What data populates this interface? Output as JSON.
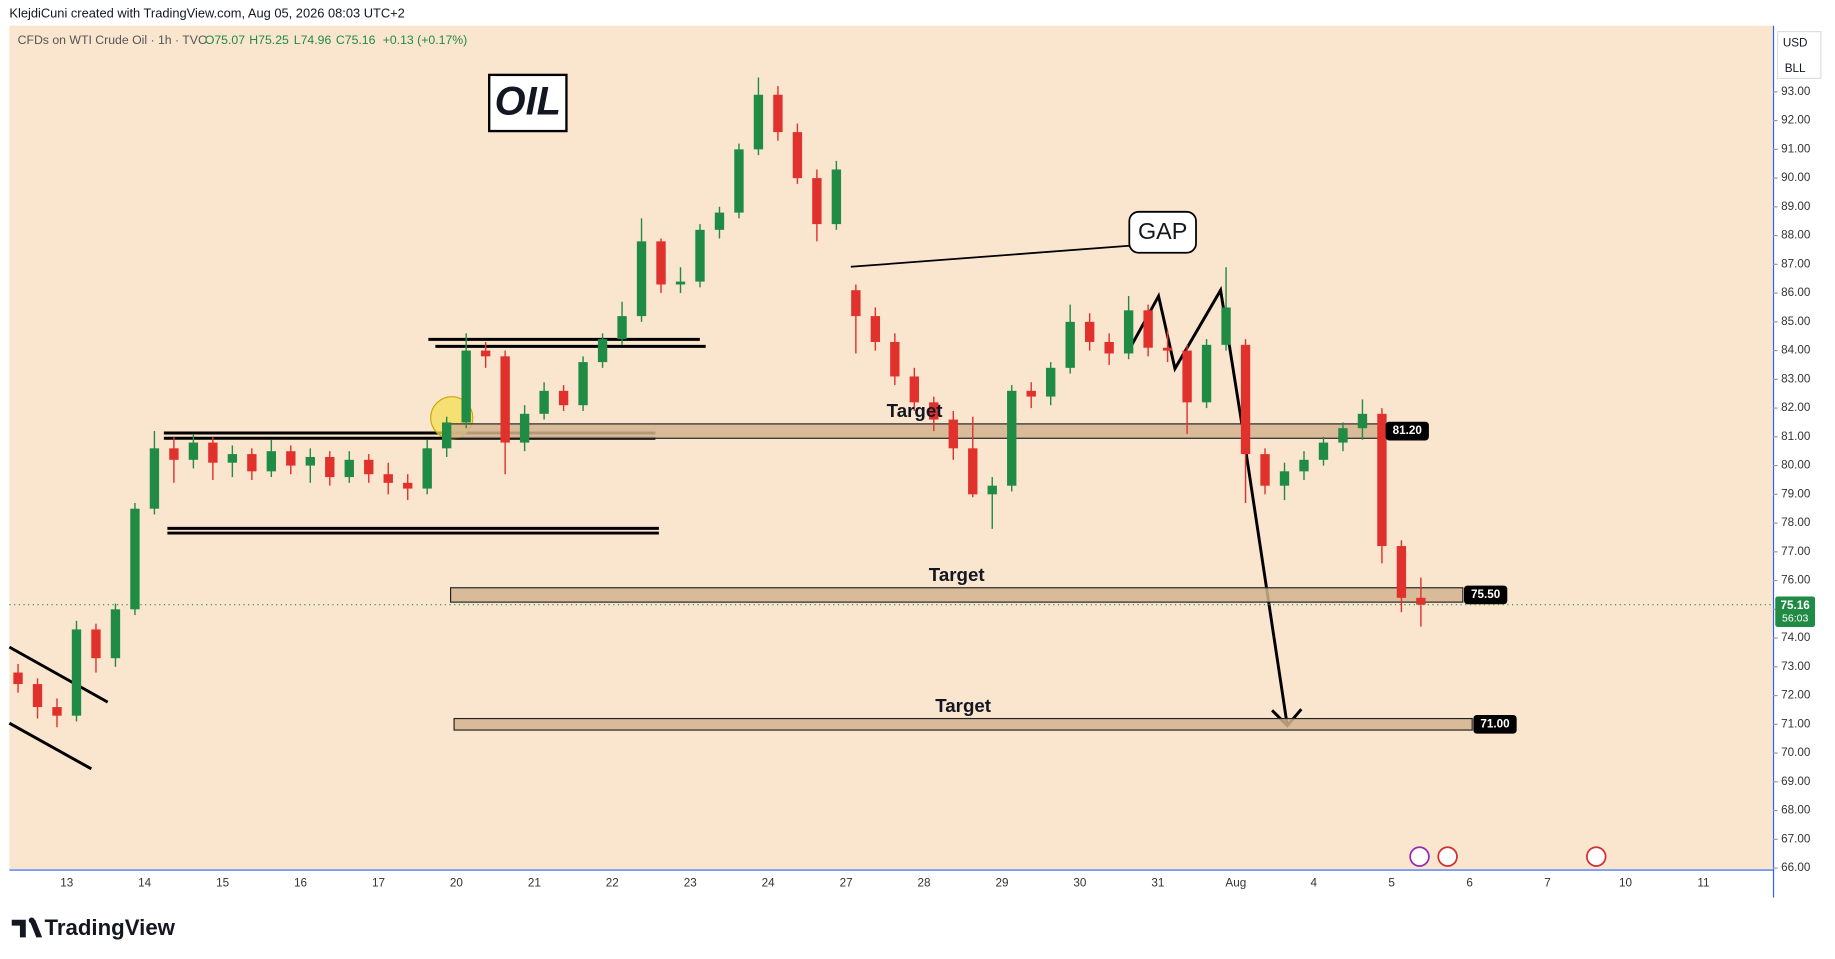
{
  "header": "KlejdiCuni created with TradingView.com, Aug 05, 2026 08:03 UTC+2",
  "footer_logo": "TradingView",
  "chart_data": {
    "type": "candlestick",
    "symbol": "CFDs on WTI Crude Oil · 1h · TVC",
    "ohlc_legend": [
      "O75.07",
      "H75.25",
      "L74.96",
      "C75.16",
      "+0.13 (+0.17%)"
    ],
    "currency": "USD",
    "unit": "BLL",
    "title": "OIL",
    "annotation": "GAP",
    "colors": {
      "up": "#1f8b44",
      "down": "#e0312c"
    },
    "categories": [
      "13",
      "14",
      "15",
      "16",
      "17",
      "20",
      "21",
      "22",
      "23",
      "24",
      "27",
      "28",
      "29",
      "30",
      "31",
      "Aug",
      "4",
      "5",
      "6",
      "7",
      "10",
      "11"
    ],
    "ohlc": [
      [
        72.8,
        73.1,
        72.1,
        72.4
      ],
      [
        72.4,
        72.6,
        71.2,
        71.6
      ],
      [
        71.6,
        71.9,
        70.9,
        71.3
      ],
      [
        71.3,
        74.6,
        71.1,
        74.3
      ],
      [
        74.3,
        74.5,
        72.8,
        73.3
      ],
      [
        73.3,
        75.2,
        73.0,
        75.0
      ],
      [
        75.0,
        78.7,
        74.8,
        78.5
      ],
      [
        78.5,
        81.2,
        78.3,
        80.6
      ],
      [
        80.6,
        81.0,
        79.4,
        80.2
      ],
      [
        80.2,
        81.1,
        79.9,
        80.8
      ],
      [
        80.8,
        81.0,
        79.5,
        80.1
      ],
      [
        80.1,
        80.7,
        79.6,
        80.4
      ],
      [
        80.4,
        80.6,
        79.5,
        79.8
      ],
      [
        79.8,
        80.9,
        79.6,
        80.5
      ],
      [
        80.5,
        80.7,
        79.7,
        80.0
      ],
      [
        80.0,
        80.6,
        79.4,
        80.3
      ],
      [
        80.3,
        80.5,
        79.3,
        79.6
      ],
      [
        79.6,
        80.5,
        79.4,
        80.2
      ],
      [
        80.2,
        80.4,
        79.4,
        79.7
      ],
      [
        79.7,
        80.1,
        79.0,
        79.4
      ],
      [
        79.4,
        79.7,
        78.8,
        79.2
      ],
      [
        79.2,
        80.9,
        79.0,
        80.6
      ],
      [
        80.6,
        81.7,
        80.3,
        81.5
      ],
      [
        81.5,
        84.6,
        81.3,
        84.0
      ],
      [
        84.0,
        84.3,
        83.4,
        83.8
      ],
      [
        83.8,
        84.0,
        79.7,
        80.8
      ],
      [
        80.8,
        82.1,
        80.5,
        81.8
      ],
      [
        81.8,
        82.9,
        81.6,
        82.6
      ],
      [
        82.6,
        82.8,
        81.9,
        82.1
      ],
      [
        82.1,
        83.8,
        81.9,
        83.6
      ],
      [
        83.6,
        84.6,
        83.4,
        84.4
      ],
      [
        84.4,
        85.7,
        84.2,
        85.2
      ],
      [
        85.2,
        88.6,
        85.0,
        87.8
      ],
      [
        87.8,
        87.9,
        86.0,
        86.3
      ],
      [
        86.3,
        86.9,
        86.0,
        86.4
      ],
      [
        86.4,
        88.4,
        86.2,
        88.2
      ],
      [
        88.2,
        89.0,
        87.9,
        88.8
      ],
      [
        88.8,
        91.2,
        88.6,
        91.0
      ],
      [
        91.0,
        93.5,
        90.8,
        92.9
      ],
      [
        92.9,
        93.2,
        91.3,
        91.6
      ],
      [
        91.6,
        91.9,
        89.8,
        90.0
      ],
      [
        90.0,
        90.3,
        87.8,
        88.4
      ],
      [
        88.4,
        90.6,
        88.2,
        90.3
      ],
      [
        86.1,
        86.3,
        83.9,
        85.2
      ],
      [
        85.2,
        85.5,
        84.0,
        84.3
      ],
      [
        84.3,
        84.6,
        82.8,
        83.1
      ],
      [
        83.1,
        83.4,
        81.9,
        82.2
      ],
      [
        82.2,
        82.4,
        81.2,
        81.6
      ],
      [
        81.6,
        81.9,
        80.2,
        80.6
      ],
      [
        80.6,
        81.7,
        78.9,
        79.0
      ],
      [
        79.0,
        79.6,
        77.8,
        79.3
      ],
      [
        79.3,
        82.8,
        79.1,
        82.6
      ],
      [
        82.6,
        82.9,
        82.0,
        82.4
      ],
      [
        82.4,
        83.6,
        82.1,
        83.4
      ],
      [
        83.4,
        85.6,
        83.2,
        85.0
      ],
      [
        85.0,
        85.3,
        84.0,
        84.3
      ],
      [
        84.3,
        84.6,
        83.5,
        83.9
      ],
      [
        83.9,
        85.9,
        83.7,
        85.4
      ],
      [
        85.4,
        85.6,
        83.8,
        84.1
      ],
      [
        84.1,
        84.7,
        83.6,
        84.0
      ],
      [
        84.0,
        84.2,
        81.1,
        82.2
      ],
      [
        82.2,
        84.4,
        82.0,
        84.2
      ],
      [
        84.2,
        86.9,
        84.0,
        85.5
      ],
      [
        84.2,
        84.4,
        78.7,
        80.4
      ],
      [
        80.4,
        80.6,
        79.0,
        79.3
      ],
      [
        79.3,
        80.1,
        78.8,
        79.8
      ],
      [
        79.8,
        80.5,
        79.5,
        80.2
      ],
      [
        80.2,
        81.0,
        80.0,
        80.8
      ],
      [
        80.8,
        81.5,
        80.5,
        81.3
      ],
      [
        81.3,
        82.3,
        80.9,
        81.8
      ],
      [
        81.8,
        82.0,
        76.6,
        77.2
      ],
      [
        77.2,
        77.4,
        74.9,
        75.4
      ],
      [
        75.4,
        76.1,
        74.4,
        75.16
      ]
    ],
    "last_price": 75.16,
    "countdown": "56:03",
    "zones": [
      {
        "name": "Target",
        "low": 80.95,
        "high": 81.45,
        "value": 81.2,
        "label": "81.20"
      },
      {
        "name": "Target",
        "low": 75.25,
        "high": 75.75,
        "value": 75.5,
        "label": "75.50"
      },
      {
        "name": "Target",
        "low": 70.8,
        "high": 71.2,
        "value": 71,
        "label": "71.00"
      }
    ],
    "ylim": [
      65.95,
      95.3
    ],
    "yticks": [
      {
        "value": 66,
        "label": "66.00"
      },
      {
        "value": 67,
        "label": "67.00"
      },
      {
        "value": 68,
        "label": "68.00"
      },
      {
        "value": 69,
        "label": "69.00"
      },
      {
        "value": 70,
        "label": "70.00"
      },
      {
        "value": 71,
        "label": "71.00"
      },
      {
        "value": 72,
        "label": "72.00"
      },
      {
        "value": 73,
        "label": "73.00"
      },
      {
        "value": 74,
        "label": "74.00"
      },
      {
        "value": 75,
        "label": "75.00"
      },
      {
        "value": 76,
        "label": "76.00"
      },
      {
        "value": 77,
        "label": "77.00"
      },
      {
        "value": 78,
        "label": "78.00"
      },
      {
        "value": 79,
        "label": "79.00"
      },
      {
        "value": 80,
        "label": "80.00"
      },
      {
        "value": 81,
        "label": "81.00"
      },
      {
        "value": 82,
        "label": "82.00"
      },
      {
        "value": 83,
        "label": "83.00"
      },
      {
        "value": 84,
        "label": "84.00"
      },
      {
        "value": 85,
        "label": "85.00"
      },
      {
        "value": 86,
        "label": "86.00"
      },
      {
        "value": 87,
        "label": "87.00"
      },
      {
        "value": 88,
        "label": "88.00"
      },
      {
        "value": 89,
        "label": "89.00"
      },
      {
        "value": 90,
        "label": "90.00"
      },
      {
        "value": 91,
        "label": "91.00"
      },
      {
        "value": 92,
        "label": "92.00"
      },
      {
        "value": 93,
        "label": "93.00"
      }
    ]
  }
}
